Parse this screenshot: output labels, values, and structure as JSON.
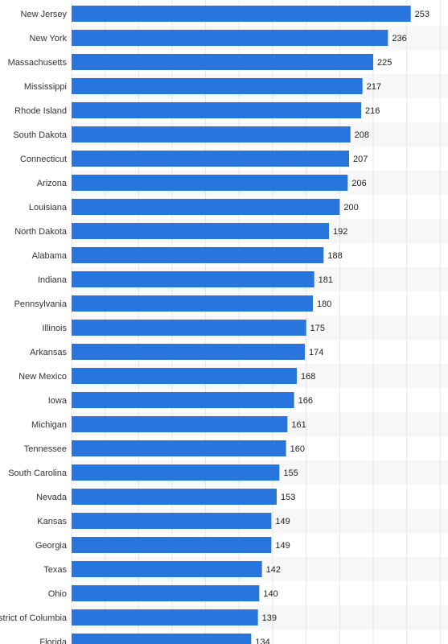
{
  "chart_data": {
    "type": "bar",
    "orientation": "horizontal",
    "categories": [
      "New Jersey",
      "New York",
      "Massachusetts",
      "Mississippi",
      "Rhode Island",
      "South Dakota",
      "Connecticut",
      "Arizona",
      "Louisiana",
      "North Dakota",
      "Alabama",
      "Indiana",
      "Pennsylvania",
      "Illinois",
      "Arkansas",
      "New Mexico",
      "Iowa",
      "Michigan",
      "Tennessee",
      "South Carolina",
      "Nevada",
      "Kansas",
      "Georgia",
      "Texas",
      "Ohio",
      "District of Columbia",
      "Florida"
    ],
    "values": [
      253,
      236,
      225,
      217,
      216,
      208,
      207,
      206,
      200,
      192,
      188,
      181,
      180,
      175,
      174,
      168,
      166,
      161,
      160,
      155,
      153,
      149,
      149,
      142,
      140,
      139,
      134
    ],
    "value_labels": [
      "253",
      "236",
      "225",
      "217",
      "216",
      "208",
      "207",
      "206",
      "200",
      "192",
      "188",
      "181",
      "180",
      "175",
      "174",
      "168",
      "166",
      "161",
      "160",
      "155",
      "153",
      "149",
      "149",
      "142",
      "140",
      "139",
      "134"
    ],
    "title": "",
    "xlabel": "",
    "ylabel": "",
    "xlim": [
      0,
      300
    ],
    "grid": true,
    "bar_color": "#2876dd",
    "alt_row_color": "#f7f7f7",
    "grid_color": "#e6e6e6"
  }
}
